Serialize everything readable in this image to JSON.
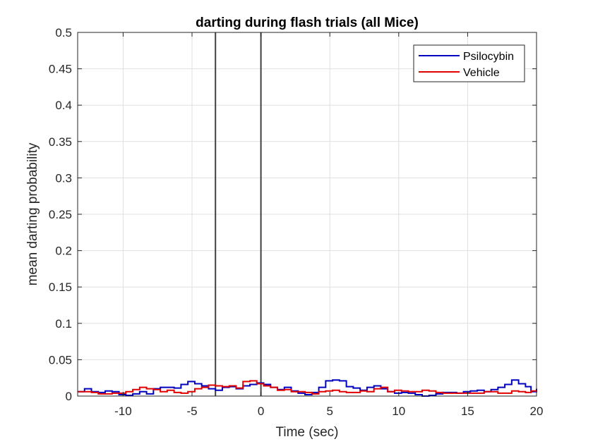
{
  "chart_data": {
    "type": "line",
    "title": "darting during flash trials (all Mice)",
    "xlabel": "Time (sec)",
    "ylabel": "mean darting probability",
    "xlim": [
      -13.3,
      20
    ],
    "ylim": [
      0,
      0.5
    ],
    "xticks": [
      -10,
      -5,
      0,
      5,
      10,
      15,
      20
    ],
    "xtick_labels": [
      "-10",
      "-5",
      "0",
      "5",
      "10",
      "15",
      "20"
    ],
    "yticks": [
      0,
      0.05,
      0.1,
      0.15,
      0.2,
      0.25,
      0.3,
      0.35,
      0.4,
      0.45,
      0.5
    ],
    "ytick_labels": [
      "0",
      "0.05",
      "0.1",
      "0.15",
      "0.2",
      "0.25",
      "0.3",
      "0.35",
      "0.4",
      "0.45",
      "0.5"
    ],
    "grid": true,
    "legend_position": "top-right",
    "vertical_lines": [
      -3.3,
      0
    ],
    "series": [
      {
        "name": "Psilocybin",
        "color": "#0000bf",
        "points": [
          [
            -13.3,
            0.006
          ],
          [
            -12.8,
            0.01
          ],
          [
            -12.3,
            0.006
          ],
          [
            -11.8,
            0.005
          ],
          [
            -11.3,
            0.007
          ],
          [
            -10.8,
            0.006
          ],
          [
            -10.3,
            0.002
          ],
          [
            -9.8,
            0.001
          ],
          [
            -9.3,
            0.003
          ],
          [
            -8.8,
            0.006
          ],
          [
            -8.3,
            0.003
          ],
          [
            -7.8,
            0.01
          ],
          [
            -7.3,
            0.012
          ],
          [
            -6.8,
            0.012
          ],
          [
            -6.3,
            0.011
          ],
          [
            -5.8,
            0.016
          ],
          [
            -5.3,
            0.02
          ],
          [
            -4.8,
            0.017
          ],
          [
            -4.3,
            0.014
          ],
          [
            -3.8,
            0.01
          ],
          [
            -3.3,
            0.008
          ],
          [
            -2.8,
            0.012
          ],
          [
            -2.3,
            0.013
          ],
          [
            -1.8,
            0.01
          ],
          [
            -1.3,
            0.014
          ],
          [
            -0.8,
            0.016
          ],
          [
            -0.3,
            0.018
          ],
          [
            0.2,
            0.016
          ],
          [
            0.7,
            0.012
          ],
          [
            1.2,
            0.009
          ],
          [
            1.7,
            0.012
          ],
          [
            2.2,
            0.007
          ],
          [
            2.7,
            0.004
          ],
          [
            3.2,
            0.002
          ],
          [
            3.7,
            0.005
          ],
          [
            4.2,
            0.012
          ],
          [
            4.7,
            0.021
          ],
          [
            5.2,
            0.022
          ],
          [
            5.7,
            0.021
          ],
          [
            6.2,
            0.013
          ],
          [
            6.7,
            0.011
          ],
          [
            7.2,
            0.008
          ],
          [
            7.7,
            0.012
          ],
          [
            8.2,
            0.014
          ],
          [
            8.7,
            0.01
          ],
          [
            9.2,
            0.006
          ],
          [
            9.7,
            0.004
          ],
          [
            10.2,
            0.005
          ],
          [
            10.7,
            0.004
          ],
          [
            11.2,
            0.002
          ],
          [
            11.7,
            0.0
          ],
          [
            12.2,
            0.001
          ],
          [
            12.7,
            0.003
          ],
          [
            13.2,
            0.005
          ],
          [
            13.7,
            0.005
          ],
          [
            14.2,
            0.004
          ],
          [
            14.7,
            0.006
          ],
          [
            15.2,
            0.007
          ],
          [
            15.7,
            0.008
          ],
          [
            16.2,
            0.006
          ],
          [
            16.7,
            0.009
          ],
          [
            17.2,
            0.012
          ],
          [
            17.7,
            0.016
          ],
          [
            18.2,
            0.022
          ],
          [
            18.7,
            0.017
          ],
          [
            19.2,
            0.013
          ],
          [
            19.6,
            0.006
          ],
          [
            20.0,
            0.01
          ]
        ]
      },
      {
        "name": "Vehicle",
        "color": "#e00000",
        "points": [
          [
            -13.3,
            0.006
          ],
          [
            -12.8,
            0.006
          ],
          [
            -12.3,
            0.005
          ],
          [
            -11.8,
            0.003
          ],
          [
            -11.3,
            0.003
          ],
          [
            -10.8,
            0.004
          ],
          [
            -10.3,
            0.004
          ],
          [
            -9.8,
            0.006
          ],
          [
            -9.3,
            0.009
          ],
          [
            -8.8,
            0.012
          ],
          [
            -8.3,
            0.01
          ],
          [
            -7.8,
            0.009
          ],
          [
            -7.3,
            0.006
          ],
          [
            -6.8,
            0.008
          ],
          [
            -6.3,
            0.005
          ],
          [
            -5.8,
            0.004
          ],
          [
            -5.3,
            0.006
          ],
          [
            -4.8,
            0.01
          ],
          [
            -4.3,
            0.012
          ],
          [
            -3.8,
            0.015
          ],
          [
            -3.3,
            0.014
          ],
          [
            -2.8,
            0.013
          ],
          [
            -2.3,
            0.014
          ],
          [
            -1.8,
            0.011
          ],
          [
            -1.3,
            0.02
          ],
          [
            -0.8,
            0.021
          ],
          [
            -0.3,
            0.017
          ],
          [
            0.2,
            0.014
          ],
          [
            0.7,
            0.012
          ],
          [
            1.2,
            0.008
          ],
          [
            1.7,
            0.009
          ],
          [
            2.2,
            0.006
          ],
          [
            2.7,
            0.006
          ],
          [
            3.2,
            0.005
          ],
          [
            3.7,
            0.003
          ],
          [
            4.2,
            0.006
          ],
          [
            4.7,
            0.007
          ],
          [
            5.2,
            0.008
          ],
          [
            5.7,
            0.006
          ],
          [
            6.2,
            0.005
          ],
          [
            6.7,
            0.005
          ],
          [
            7.2,
            0.007
          ],
          [
            7.7,
            0.006
          ],
          [
            8.2,
            0.01
          ],
          [
            8.7,
            0.012
          ],
          [
            9.2,
            0.006
          ],
          [
            9.7,
            0.008
          ],
          [
            10.2,
            0.007
          ],
          [
            10.7,
            0.006
          ],
          [
            11.2,
            0.006
          ],
          [
            11.7,
            0.008
          ],
          [
            12.2,
            0.007
          ],
          [
            12.7,
            0.005
          ],
          [
            13.2,
            0.004
          ],
          [
            13.7,
            0.004
          ],
          [
            14.2,
            0.004
          ],
          [
            14.7,
            0.004
          ],
          [
            15.2,
            0.004
          ],
          [
            15.7,
            0.004
          ],
          [
            16.2,
            0.006
          ],
          [
            16.7,
            0.006
          ],
          [
            17.2,
            0.004
          ],
          [
            17.7,
            0.004
          ],
          [
            18.2,
            0.007
          ],
          [
            18.7,
            0.006
          ],
          [
            19.2,
            0.005
          ],
          [
            19.6,
            0.007
          ],
          [
            20.0,
            0.006
          ]
        ]
      }
    ]
  }
}
